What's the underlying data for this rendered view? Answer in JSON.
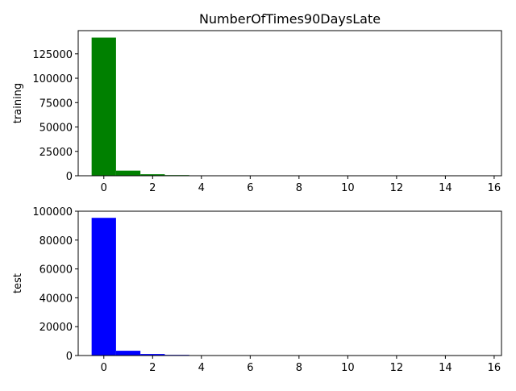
{
  "chart_data": [
    {
      "type": "bar",
      "title": "NumberOfTimes90DaysLate",
      "xlabel": "",
      "ylabel": "training",
      "color": "#008000",
      "x": [
        0,
        1,
        2,
        3,
        4,
        5,
        6,
        7,
        8,
        9,
        10,
        11,
        12,
        13,
        14,
        15
      ],
      "values": [
        141700,
        5240,
        1550,
        670,
        290,
        130,
        80,
        38,
        21,
        19,
        8,
        2,
        2,
        4,
        2,
        2
      ],
      "xlim": [
        -1.05,
        16.3
      ],
      "ylim": [
        0,
        148800
      ],
      "xticks": [
        0,
        2,
        4,
        6,
        8,
        10,
        12,
        14,
        16
      ],
      "xtick_labels": [
        "0",
        "2",
        "4",
        "6",
        "8",
        "10",
        "12",
        "14",
        "16"
      ],
      "yticks": [
        0,
        25000,
        50000,
        75000,
        100000,
        125000
      ],
      "ytick_labels": [
        "0",
        "25000",
        "50000",
        "75000",
        "100000",
        "125000"
      ],
      "grid": false
    },
    {
      "type": "bar",
      "title": "",
      "xlabel": "",
      "ylabel": "test",
      "color": "#0000ff",
      "x": [
        0,
        1,
        2,
        3,
        4,
        5,
        6,
        7,
        8,
        9,
        10,
        11,
        12,
        13,
        14,
        15
      ],
      "values": [
        95400,
        3300,
        1060,
        460,
        200,
        100,
        60,
        30,
        15,
        10,
        6,
        3,
        2,
        2,
        2,
        2
      ],
      "xlim": [
        -1.05,
        16.3
      ],
      "ylim": [
        0,
        100000
      ],
      "xticks": [
        0,
        2,
        4,
        6,
        8,
        10,
        12,
        14,
        16
      ],
      "xtick_labels": [
        "0",
        "2",
        "4",
        "6",
        "8",
        "10",
        "12",
        "14",
        "16"
      ],
      "yticks": [
        0,
        20000,
        40000,
        60000,
        80000,
        100000
      ],
      "ytick_labels": [
        "0",
        "20000",
        "40000",
        "60000",
        "80000",
        "100000"
      ],
      "grid": false
    }
  ]
}
